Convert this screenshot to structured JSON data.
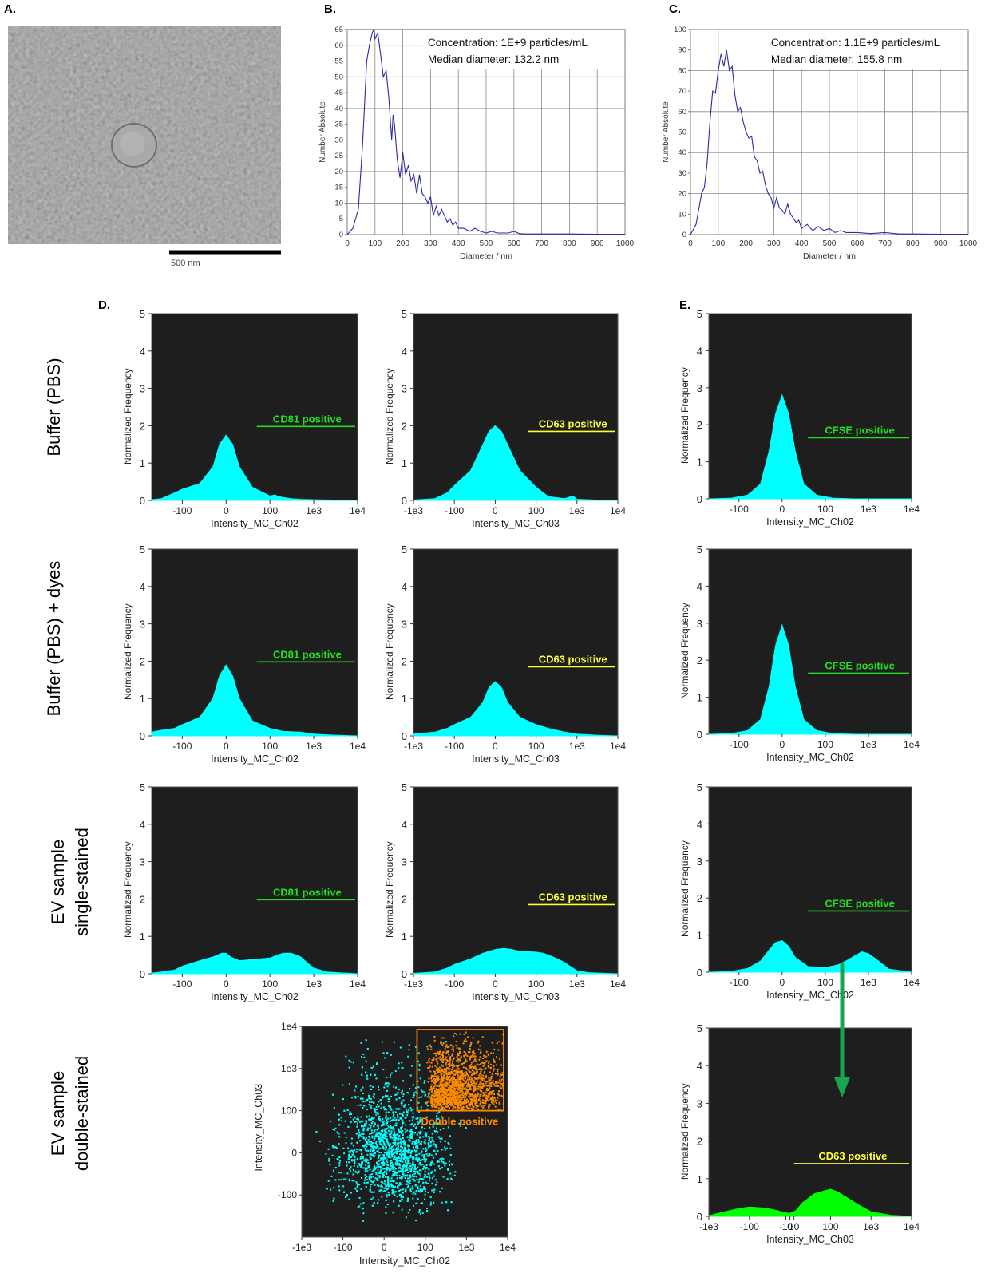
{
  "panel_letters": [
    "A.",
    "B.",
    "C.",
    "D.",
    "E."
  ],
  "tem": {
    "scale_label": "500 nm"
  },
  "row_labels": [
    [
      "Buffer (PBS)"
    ],
    [
      "Buffer (PBS) + dyes"
    ],
    [
      "EV sample",
      "single-stained"
    ],
    [
      "EV sample",
      "double-stained"
    ]
  ],
  "colors": {
    "cyan": "#00ffff",
    "green_fill": "#00ff00",
    "green_gate": "#22dd22",
    "yellow_gate": "#ffff33",
    "orange": "#ff8c00",
    "plot_bg": "#1e1e1e",
    "nta_line": "#2a2aa8",
    "arrow": "#17a552"
  },
  "chart_data": [
    {
      "id": "B",
      "type": "line",
      "xlabel": "Diameter / nm",
      "ylabel": "Number Absolute",
      "xlim": [
        0,
        1000
      ],
      "ylim": [
        0,
        65
      ],
      "xticks": [
        "0",
        "100",
        "200",
        "300",
        "400",
        "500",
        "600",
        "700",
        "800",
        "900",
        "1000"
      ],
      "yticks": [
        "0",
        "5",
        "10",
        "15",
        "20",
        "25",
        "30",
        "35",
        "40",
        "45",
        "50",
        "55",
        "60",
        "65"
      ],
      "annotations": [
        "Concentration: 1E+9 particles/mL",
        "Median diameter: 132.2 nm"
      ],
      "x": [
        0,
        20,
        40,
        55,
        70,
        80,
        90,
        95,
        100,
        110,
        120,
        130,
        140,
        150,
        160,
        165,
        170,
        180,
        190,
        200,
        210,
        220,
        230,
        240,
        250,
        260,
        270,
        280,
        290,
        300,
        310,
        320,
        330,
        340,
        350,
        360,
        370,
        380,
        390,
        400,
        420,
        440,
        460,
        480,
        500,
        520,
        540,
        560,
        580,
        600,
        620,
        640,
        700,
        800,
        900,
        1000
      ],
      "y": [
        0,
        2,
        8,
        28,
        55,
        60,
        64,
        65,
        62,
        64,
        57,
        50,
        52,
        43,
        30,
        38,
        35,
        24,
        18,
        26,
        19,
        22,
        17,
        19,
        13,
        19,
        13,
        12,
        10,
        12,
        6,
        9,
        6,
        8,
        6,
        4,
        5,
        3,
        4,
        2,
        2,
        1,
        2,
        1,
        0.5,
        1,
        0.5,
        0.5,
        0.5,
        1,
        0.3,
        0.2,
        0.2,
        0.2,
        0.1,
        0.1
      ]
    },
    {
      "id": "C",
      "type": "line",
      "xlabel": "Diameter / nm",
      "ylabel": "Number Absolute",
      "xlim": [
        0,
        1000
      ],
      "ylim": [
        0,
        100
      ],
      "xticks": [
        "0",
        "100",
        "200",
        "300",
        "400",
        "500",
        "600",
        "700",
        "800",
        "900",
        "1000"
      ],
      "yticks": [
        "0",
        "10",
        "20",
        "30",
        "40",
        "50",
        "60",
        "70",
        "80",
        "90",
        "100"
      ],
      "annotations": [
        "Concentration: 1.1E+9 particles/mL",
        "Median diameter: 155.8 nm"
      ],
      "x": [
        0,
        20,
        40,
        50,
        60,
        70,
        80,
        90,
        100,
        110,
        120,
        130,
        140,
        150,
        160,
        170,
        180,
        190,
        200,
        210,
        220,
        230,
        240,
        250,
        260,
        270,
        280,
        290,
        300,
        310,
        320,
        330,
        340,
        350,
        360,
        370,
        380,
        390,
        400,
        420,
        440,
        460,
        480,
        500,
        520,
        540,
        560,
        580,
        600,
        650,
        700,
        750,
        800,
        900,
        1000
      ],
      "y": [
        0,
        5,
        20,
        23,
        35,
        55,
        70,
        69,
        80,
        88,
        82,
        90,
        80,
        82,
        68,
        60,
        62,
        55,
        50,
        47,
        48,
        38,
        36,
        30,
        31,
        24,
        20,
        18,
        13,
        18,
        13,
        12,
        10,
        15,
        10,
        8,
        6,
        7,
        3,
        5,
        2,
        4,
        2,
        3,
        1,
        2,
        1,
        1,
        1,
        0.5,
        1,
        0.3,
        0.3,
        0.2,
        0.2
      ]
    },
    {
      "id": "D1",
      "type": "area",
      "xlabel": "Intensity_MC_Ch02",
      "ylabel": "Normalized Frequency",
      "xticks": [
        "-100",
        "0",
        "100",
        "1e3",
        "1e4"
      ],
      "ylim": [
        0,
        5
      ],
      "yticks": [
        "0",
        "1",
        "2",
        "3",
        "4",
        "5"
      ],
      "gate": {
        "label": "CD81 positive",
        "level": 1.98
      },
      "x": [
        -500,
        -300,
        -150,
        -100,
        -60,
        -30,
        -15,
        0,
        15,
        30,
        60,
        100,
        130,
        160,
        200,
        300,
        500,
        1000,
        3000,
        10000
      ],
      "y": [
        0.02,
        0.05,
        0.2,
        0.3,
        0.45,
        0.9,
        1.5,
        1.75,
        1.5,
        0.9,
        0.35,
        0.12,
        0.15,
        0.1,
        0.08,
        0.05,
        0.03,
        0.02,
        0.01,
        0
      ]
    },
    {
      "id": "D2",
      "type": "area",
      "xlabel": "Intensity_MC_Ch03",
      "ylabel": "Normalized Frequency",
      "xticks": [
        "-1e3",
        "-100",
        "0",
        "100",
        "1e3",
        "1e4"
      ],
      "ylim": [
        0,
        5
      ],
      "yticks": [
        "0",
        "1",
        "2",
        "3",
        "4",
        "5"
      ],
      "gate": {
        "label": "CD63 positive",
        "level": 1.85
      },
      "x": [
        -1000,
        -300,
        -150,
        -100,
        -60,
        -30,
        -15,
        0,
        15,
        30,
        60,
        100,
        200,
        500,
        800,
        1000,
        3000,
        10000
      ],
      "y": [
        0.01,
        0.05,
        0.2,
        0.4,
        0.8,
        1.5,
        1.85,
        2,
        1.85,
        1.5,
        0.8,
        0.35,
        0.1,
        0.05,
        0.12,
        0.03,
        0.01,
        0
      ]
    },
    {
      "id": "D3",
      "type": "area",
      "xlabel": "Intensity_MC_Ch02",
      "ylabel": "Normalized Frequency",
      "xticks": [
        "-100",
        "0",
        "100",
        "1e3",
        "1e4"
      ],
      "ylim": [
        0,
        5
      ],
      "yticks": [
        "0",
        "1",
        "2",
        "3",
        "4",
        "5"
      ],
      "gate": {
        "label": "CD81 positive",
        "level": 1.98
      },
      "x": [
        -500,
        -300,
        -150,
        -100,
        -60,
        -30,
        -15,
        0,
        15,
        30,
        60,
        100,
        200,
        500,
        1000,
        3000,
        10000
      ],
      "y": [
        0.1,
        0.15,
        0.2,
        0.3,
        0.5,
        1,
        1.6,
        1.9,
        1.6,
        1,
        0.4,
        0.2,
        0.12,
        0.1,
        0.05,
        0.02,
        0
      ]
    },
    {
      "id": "D4",
      "type": "area",
      "xlabel": "Intensity_MC_Ch03",
      "ylabel": "Normalized Frequency",
      "xticks": [
        "-1e3",
        "-100",
        "0",
        "100",
        "1e3",
        "1e4"
      ],
      "ylim": [
        0,
        5
      ],
      "yticks": [
        "0",
        "1",
        "2",
        "3",
        "4",
        "5"
      ],
      "gate": {
        "label": "CD63 positive",
        "level": 1.85
      },
      "x": [
        -1000,
        -300,
        -150,
        -100,
        -60,
        -30,
        -15,
        0,
        15,
        30,
        60,
        100,
        200,
        500,
        1000,
        3000,
        10000
      ],
      "y": [
        0.05,
        0.1,
        0.2,
        0.3,
        0.5,
        0.9,
        1.3,
        1.45,
        1.3,
        0.9,
        0.5,
        0.3,
        0.2,
        0.1,
        0.05,
        0.02,
        0
      ]
    },
    {
      "id": "D5",
      "type": "area",
      "xlabel": "Intensity_MC_Ch02",
      "ylabel": "Normalized Frequency",
      "xticks": [
        "-100",
        "0",
        "100",
        "1e3",
        "1e4"
      ],
      "ylim": [
        0,
        5
      ],
      "yticks": [
        "0",
        "1",
        "2",
        "3",
        "4",
        "5"
      ],
      "gate": {
        "label": "CD81 positive",
        "level": 1.98
      },
      "x": [
        -500,
        -300,
        -150,
        -100,
        -60,
        -30,
        -10,
        0,
        10,
        30,
        60,
        100,
        150,
        200,
        300,
        400,
        500,
        700,
        1000,
        2000,
        5000,
        10000
      ],
      "y": [
        0.02,
        0.05,
        0.1,
        0.2,
        0.35,
        0.45,
        0.55,
        0.55,
        0.45,
        0.35,
        0.38,
        0.42,
        0.5,
        0.55,
        0.55,
        0.5,
        0.45,
        0.3,
        0.15,
        0.05,
        0.02,
        0
      ]
    },
    {
      "id": "D6",
      "type": "area",
      "xlabel": "Intensity_MC_Ch03",
      "ylabel": "Normalized Frequency",
      "xticks": [
        "-1e3",
        "-100",
        "0",
        "100",
        "1e3",
        "1e4"
      ],
      "ylim": [
        0,
        5
      ],
      "yticks": [
        "0",
        "1",
        "2",
        "3",
        "4",
        "5"
      ],
      "gate": {
        "label": "CD63 positive",
        "level": 1.85
      },
      "x": [
        -1000,
        -300,
        -150,
        -100,
        -60,
        -30,
        0,
        20,
        40,
        60,
        100,
        150,
        200,
        300,
        500,
        800,
        1000,
        2000,
        5000,
        10000
      ],
      "y": [
        0.01,
        0.05,
        0.15,
        0.25,
        0.4,
        0.55,
        0.65,
        0.68,
        0.65,
        0.6,
        0.58,
        0.55,
        0.5,
        0.42,
        0.3,
        0.15,
        0.08,
        0.03,
        0.01,
        0
      ]
    },
    {
      "id": "E1",
      "type": "area",
      "xlabel": "Intensity_MC_Ch02",
      "ylabel": "Normalized Frequency",
      "xticks": [
        "-100",
        "0",
        "100",
        "1e3",
        "1e4"
      ],
      "ylim": [
        0,
        5
      ],
      "yticks": [
        "0",
        "1",
        "2",
        "3",
        "4",
        "5"
      ],
      "gate": {
        "label": "CFSE positive",
        "level": 1.65
      },
      "x": [
        -500,
        -150,
        -80,
        -50,
        -30,
        -15,
        0,
        15,
        30,
        50,
        80,
        150,
        500,
        10000
      ],
      "y": [
        0,
        0.02,
        0.1,
        0.4,
        1.3,
        2.3,
        2.8,
        2.3,
        1.3,
        0.4,
        0.1,
        0.02,
        0,
        0
      ]
    },
    {
      "id": "E2",
      "type": "area",
      "xlabel": "Intensity_MC_Ch02",
      "ylabel": "Normalized Frequency",
      "xticks": [
        "-100",
        "0",
        "100",
        "1e3",
        "1e4"
      ],
      "ylim": [
        0,
        5
      ],
      "yticks": [
        "0",
        "1",
        "2",
        "3",
        "4",
        "5"
      ],
      "gate": {
        "label": "CFSE positive",
        "level": 1.65
      },
      "x": [
        -500,
        -150,
        -80,
        -50,
        -30,
        -15,
        0,
        15,
        30,
        50,
        80,
        150,
        500,
        10000
      ],
      "y": [
        0,
        0.02,
        0.1,
        0.4,
        1.3,
        2.4,
        2.95,
        2.4,
        1.3,
        0.4,
        0.1,
        0.02,
        0,
        0
      ]
    },
    {
      "id": "E3",
      "type": "area",
      "xlabel": "Intensity_MC_Ch02",
      "ylabel": "Normalized Frequency",
      "xticks": [
        "-100",
        "0",
        "100",
        "1e3",
        "1e4"
      ],
      "ylim": [
        0,
        5
      ],
      "yticks": [
        "0",
        "1",
        "2",
        "3",
        "4",
        "5"
      ],
      "gate": {
        "label": "CFSE positive",
        "level": 1.65
      },
      "x": [
        -500,
        -150,
        -80,
        -50,
        -30,
        -15,
        0,
        15,
        30,
        60,
        100,
        200,
        300,
        500,
        700,
        1000,
        1500,
        3000,
        10000
      ],
      "y": [
        0,
        0.02,
        0.1,
        0.3,
        0.6,
        0.8,
        0.85,
        0.7,
        0.4,
        0.15,
        0.12,
        0.2,
        0.3,
        0.45,
        0.55,
        0.5,
        0.35,
        0.08,
        0
      ]
    },
    {
      "id": "E4",
      "type": "area",
      "xlabel": "Intensity_MC_Ch03",
      "ylabel": "Normalized Frequency",
      "xticks": [
        "-1e3",
        "-100",
        "-10",
        "0",
        "10",
        "100",
        "1e3",
        "1e4"
      ],
      "ylim": [
        0,
        5
      ],
      "yticks": [
        "0",
        "1",
        "2",
        "3",
        "4",
        "5"
      ],
      "gate": {
        "label": "CD63 positive",
        "level": 1.4
      },
      "x": [
        -1000,
        -500,
        -200,
        -100,
        -60,
        -30,
        -15,
        0,
        15,
        30,
        60,
        100,
        150,
        300,
        500,
        1000,
        3000,
        10000
      ],
      "y": [
        0.02,
        0.1,
        0.2,
        0.25,
        0.22,
        0.15,
        0.1,
        0.08,
        0.15,
        0.35,
        0.6,
        0.72,
        0.65,
        0.45,
        0.3,
        0.12,
        0.03,
        0
      ]
    },
    {
      "id": "scatter",
      "type": "scatter",
      "xlabel": "Intensity_MC_Ch02",
      "ylabel": "Intensity_MC_Ch03",
      "xticks": [
        "-1e3",
        "-100",
        "0",
        "100",
        "1e3",
        "1e4"
      ],
      "yticks": [
        "-100",
        "0",
        "100",
        "1e3",
        "1e4"
      ],
      "gate": {
        "label": "Double positive"
      }
    }
  ]
}
